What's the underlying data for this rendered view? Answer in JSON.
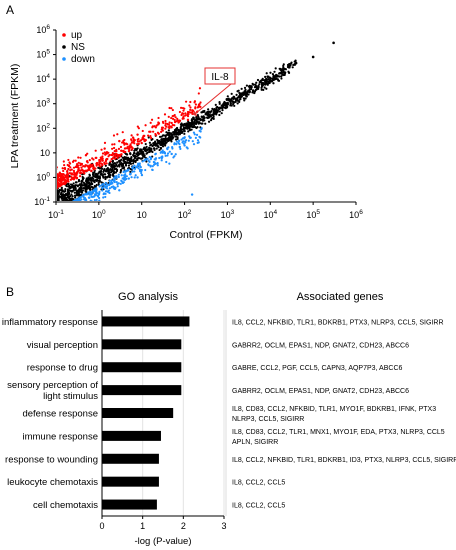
{
  "chart_data": [
    {
      "panel": "A",
      "type": "scatter",
      "xlabel": "Control (FPKM)",
      "ylabel": "LPA treatment (FPKM)",
      "xscale": "log",
      "yscale": "log",
      "xlim": [
        0.1,
        1000000
      ],
      "ylim": [
        0.1,
        1000000
      ],
      "x_ticks": [
        "10-1",
        "100",
        "10",
        "102",
        "103",
        "104",
        "105",
        "106"
      ],
      "y_ticks": [
        "10-1",
        "100",
        "10",
        "102",
        "103",
        "104",
        "105",
        "106"
      ],
      "legend": {
        "placement": "top-left",
        "entries": [
          "up",
          "NS",
          "down"
        ]
      },
      "series": [
        {
          "name": "up",
          "color": "#ff0000",
          "approx_points": [
            [
              0.15,
              0.8
            ],
            [
              0.3,
              1.5
            ],
            [
              0.6,
              3
            ],
            [
              1.2,
              5
            ],
            [
              2.5,
              9
            ],
            [
              5,
              15
            ],
            [
              10,
              25
            ],
            [
              25,
              60
            ],
            [
              50,
              110
            ],
            [
              120,
              220
            ],
            [
              0.2,
              3
            ],
            [
              0.5,
              8
            ],
            [
              3,
              30
            ],
            [
              8,
              55
            ],
            [
              20,
              120
            ],
            [
              60,
              180
            ]
          ]
        },
        {
          "name": "NS",
          "color": "#000000",
          "approx_points": [
            [
              0.1,
              0.1
            ],
            [
              1,
              1
            ],
            [
              10,
              10
            ],
            [
              100,
              100
            ],
            [
              1000,
              1000
            ],
            [
              10000,
              9000
            ],
            [
              40000,
              45000
            ],
            [
              100000,
              80000
            ],
            [
              300000,
              300000
            ],
            [
              200,
              180
            ],
            [
              30,
              28
            ],
            [
              5,
              5.5
            ],
            [
              2000,
              2300
            ],
            [
              8000,
              7000
            ]
          ]
        },
        {
          "name": "down",
          "color": "#1e90ff",
          "approx_points": [
            [
              0.5,
              0.12
            ],
            [
              1,
              0.2
            ],
            [
              2,
              0.4
            ],
            [
              5,
              0.9
            ],
            [
              10,
              2
            ],
            [
              20,
              4
            ],
            [
              50,
              9
            ],
            [
              100,
              20
            ],
            [
              150,
              0.2
            ],
            [
              3,
              0.3
            ],
            [
              8,
              1
            ]
          ]
        }
      ],
      "annotation": {
        "label": "IL-8",
        "x": 200,
        "y": 300
      }
    },
    {
      "panel": "B",
      "type": "bar",
      "title": "GO analysis",
      "xlabel": "-log (P-value)",
      "xlim": [
        0,
        3
      ],
      "x_ticks": [
        "0",
        "1",
        "2",
        "3"
      ],
      "categories": [
        "inflammatory response",
        "visual perception",
        "response to drug",
        "sensory perception of light stimulus",
        "defense response",
        "immune response",
        "response to wounding",
        "leukocyte chemotaxis",
        "cell chemotaxis"
      ],
      "values": [
        2.15,
        1.95,
        1.95,
        1.95,
        1.75,
        1.45,
        1.4,
        1.4,
        1.35
      ],
      "bar_color": "#000000",
      "genes_header": "Associated genes",
      "genes": [
        [
          "IL8, CCL2, NFKBID, TLR1, BDKRB1, PTX3, NLRP3, CCL5, SIGIRR"
        ],
        [
          "GABRR2, OCLM, EPAS1, NDP, GNAT2, CDH23, ABCC6"
        ],
        [
          "GABRE, CCL2, PGF, CCL5, CAPN3, AQP7P3, ABCC6"
        ],
        [
          "GABRR2, OCLM, EPAS1, NDP, GNAT2, CDH23, ABCC6"
        ],
        [
          "IL8, CD83, CCL2, NFKBID, TLR1, MYO1F, BDKRB1, IFNK, PTX3",
          "NLRP3, CCL5, SIGIRR"
        ],
        [
          "IL8, CD83, CCL2, TLR1, MNX1, MYO1F, EDA, PTX3, NLRP3, CCL5",
          "APLN, SIGIRR"
        ],
        [
          "IL8, CCL2, NFKBID, TLR1, BDKRB1, ID3, PTX3, NLRP3, CCL5, SIGIRR"
        ],
        [
          "IL8, CCL2, CCL5"
        ],
        [
          "IL8, CCL2, CCL5"
        ]
      ]
    }
  ],
  "panel_labels": [
    "A",
    "B"
  ]
}
